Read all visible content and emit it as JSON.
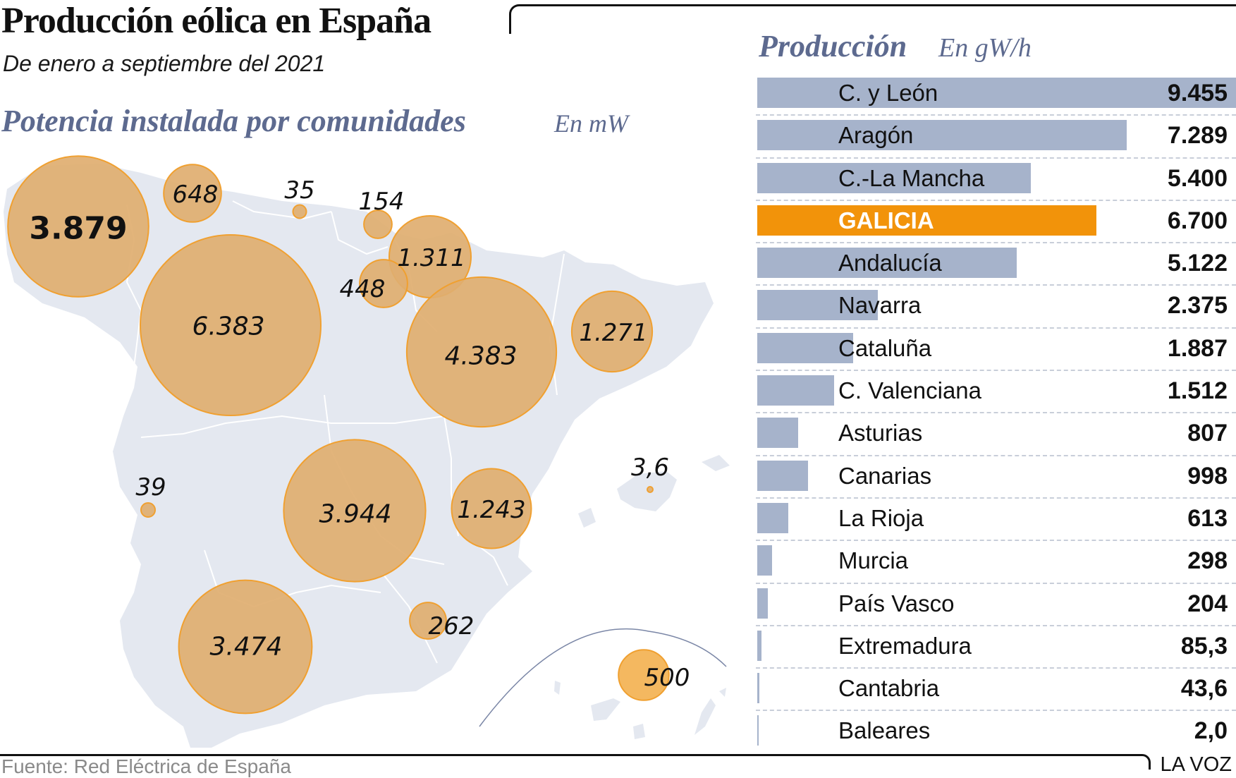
{
  "header": {
    "title": "Producción eólica en España",
    "subtitle": "De enero a septiembre del 2021"
  },
  "map_section": {
    "title": "Potencia instalada por comunidades",
    "unit": "En mW"
  },
  "production_section": {
    "title": "Producción",
    "unit": "En gW/h"
  },
  "footer": {
    "source": "Fuente: Red Eléctrica de España",
    "brand": "LA VOZ"
  },
  "colors": {
    "bar": "#a6b3cb",
    "highlight": "#f2930a",
    "bubble_fill": "#e0ae70",
    "bubble_stroke": "#f0a030",
    "map_land": "#e4e8f0",
    "section_title": "#5d6a8f"
  },
  "chart_data": [
    {
      "type": "scatter",
      "subtype": "bubble-map",
      "title": "Potencia instalada por comunidades",
      "unit": "En mW",
      "points": [
        {
          "region": "Galicia",
          "value": 3879,
          "label": "3.879",
          "emphasis": true
        },
        {
          "region": "Asturias",
          "value": 648,
          "label": "648"
        },
        {
          "region": "Cantabria",
          "value": 35,
          "label": "35"
        },
        {
          "region": "País Vasco",
          "value": 154,
          "label": "154"
        },
        {
          "region": "Navarra",
          "value": 1311,
          "label": "1.311"
        },
        {
          "region": "La Rioja",
          "value": 448,
          "label": "448"
        },
        {
          "region": "Castilla y León",
          "value": 6383,
          "label": "6.383"
        },
        {
          "region": "Aragón",
          "value": 4383,
          "label": "4.383"
        },
        {
          "region": "Cataluña",
          "value": 1271,
          "label": "1.271"
        },
        {
          "region": "Extremadura",
          "value": 39,
          "label": "39"
        },
        {
          "region": "Castilla-La Mancha",
          "value": 3944,
          "label": "3.944"
        },
        {
          "region": "C. Valenciana",
          "value": 1243,
          "label": "1.243"
        },
        {
          "region": "Baleares",
          "value": 3.6,
          "label": "3,6"
        },
        {
          "region": "Murcia",
          "value": 262,
          "label": "262"
        },
        {
          "region": "Andalucía",
          "value": 3474,
          "label": "3.474"
        },
        {
          "region": "Canarias",
          "value": 500,
          "label": "500"
        }
      ]
    },
    {
      "type": "bar",
      "orientation": "horizontal",
      "title": "Producción",
      "unit": "En gW/h",
      "xlim": [
        0,
        9455
      ],
      "categories": [
        "C. y León",
        "Aragón",
        "C.-La Mancha",
        "GALICIA",
        "Andalucía",
        "Navarra",
        "Cataluña",
        "C. Valenciana",
        "Asturias",
        "Canarias",
        "La Rioja",
        "Murcia",
        "País Vasco",
        "Extremadura",
        "Cantabria",
        "Baleares"
      ],
      "values": [
        9455,
        7289,
        5400,
        6700,
        5122,
        2375,
        1887,
        1512,
        807,
        998,
        613,
        298,
        204,
        85.3,
        43.6,
        2.0
      ],
      "labels": [
        "9.455",
        "7.289",
        "5.400",
        "6.700",
        "5.122",
        "2.375",
        "1.887",
        "1.512",
        "807",
        "998",
        "613",
        "298",
        "204",
        "85,3",
        "43,6",
        "2,0"
      ],
      "highlight": "GALICIA"
    }
  ]
}
